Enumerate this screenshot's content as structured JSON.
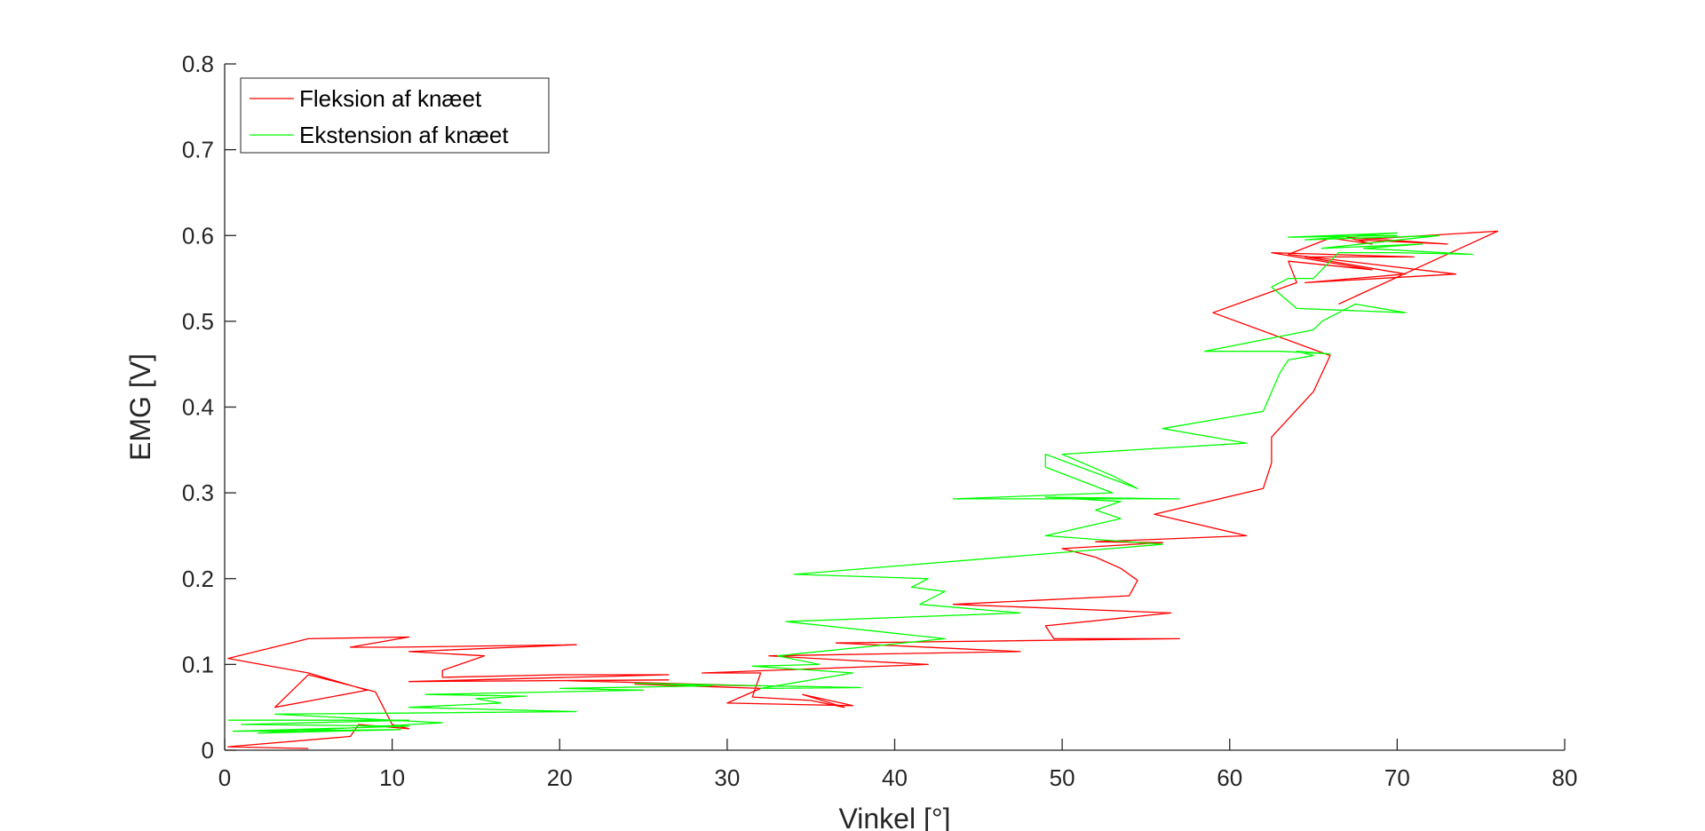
{
  "chart_data": {
    "type": "line",
    "xlabel": "Vinkel [°]",
    "ylabel": "EMG [V]",
    "xlim": [
      0,
      80
    ],
    "ylim": [
      0,
      0.8
    ],
    "xticks": [
      "0",
      "10",
      "20",
      "30",
      "40",
      "50",
      "60",
      "70",
      "80"
    ],
    "yticks": [
      "0",
      "0.1",
      "0.2",
      "0.3",
      "0.4",
      "0.5",
      "0.6",
      "0.7",
      "0.8"
    ],
    "grid": false,
    "legend_position": "top-left",
    "series": [
      {
        "name": "Fleksion af knæet",
        "color": "#ff0000",
        "x": [
          5.0,
          0.2,
          7.5,
          8.0,
          11.0,
          10.0,
          9.0,
          5.0,
          3.0,
          8.5,
          5.0,
          0.2,
          5.0,
          11.0,
          7.5,
          10.0,
          21.0,
          11.0,
          15.5,
          13.0,
          13.0,
          20.0,
          26.5,
          11.0,
          26.5,
          20.5,
          32.0,
          24.5,
          32.0,
          30.0,
          37.5,
          34.5,
          37.0,
          35.0,
          31.5,
          32.0,
          28.5,
          42.0,
          37.0,
          32.5,
          47.5,
          36.5,
          57.0,
          49.5,
          49.0,
          56.5,
          43.5,
          54.0,
          54.5,
          53.5,
          52.0,
          50.0,
          56.0,
          52.0,
          61.0,
          55.5,
          62.0,
          62.5,
          62.5,
          65.0,
          66.0,
          59.0,
          64.0,
          63.5,
          68.5,
          62.5,
          71.0,
          64.5,
          70.5,
          64.5,
          73.5,
          63.5,
          66.0,
          68.5,
          67.0,
          73.0,
          67.5,
          76.0,
          66.5
        ],
        "y": [
          0.002,
          0.004,
          0.016,
          0.03,
          0.025,
          0.03,
          0.068,
          0.088,
          0.05,
          0.07,
          0.09,
          0.107,
          0.13,
          0.132,
          0.12,
          0.12,
          0.123,
          0.115,
          0.11,
          0.093,
          0.085,
          0.088,
          0.088,
          0.08,
          0.082,
          0.081,
          0.075,
          0.077,
          0.072,
          0.055,
          0.052,
          0.065,
          0.05,
          0.058,
          0.062,
          0.09,
          0.09,
          0.1,
          0.105,
          0.11,
          0.115,
          0.125,
          0.13,
          0.13,
          0.145,
          0.16,
          0.17,
          0.18,
          0.198,
          0.212,
          0.225,
          0.235,
          0.242,
          0.243,
          0.25,
          0.275,
          0.305,
          0.335,
          0.365,
          0.418,
          0.46,
          0.51,
          0.545,
          0.57,
          0.56,
          0.58,
          0.575,
          0.575,
          0.555,
          0.545,
          0.555,
          0.578,
          0.597,
          0.59,
          0.598,
          0.59,
          0.595,
          0.605,
          0.52
        ]
      },
      {
        "name": "Ekstension af knæet",
        "color": "#00ff00",
        "x": [
          0.2,
          11.0,
          1.0,
          11.0,
          0.5,
          10.5,
          2.0,
          13.0,
          3.0,
          21.0,
          11.0,
          16.5,
          15.0,
          18.0,
          12.0,
          25.0,
          20.0,
          29.0,
          24.5,
          38.0,
          32.0,
          37.5,
          31.5,
          35.5,
          33.0,
          43.0,
          33.5,
          47.5,
          41.5,
          43.0,
          41.0,
          42.0,
          34.0,
          56.0,
          49.0,
          53.5,
          52.0,
          53.5,
          49.0,
          57.0,
          43.5,
          53.0,
          49.0,
          49.0,
          54.5,
          53.0,
          50.0,
          61.0,
          56.0,
          62.0,
          63.0,
          63.5,
          65.0,
          64.0,
          66.0,
          63.0,
          58.5,
          65.0,
          65.5,
          67.5,
          70.5,
          64.0,
          62.5,
          63.5,
          65.0,
          66.5,
          70.0,
          74.5,
          68.0,
          71.5,
          65.5,
          72.5,
          64.5,
          70.0,
          63.5,
          70.0
        ],
        "y": [
          0.035,
          0.035,
          0.03,
          0.028,
          0.022,
          0.024,
          0.02,
          0.032,
          0.042,
          0.045,
          0.05,
          0.055,
          0.06,
          0.063,
          0.065,
          0.07,
          0.072,
          0.075,
          0.078,
          0.073,
          0.072,
          0.09,
          0.098,
          0.1,
          0.11,
          0.13,
          0.15,
          0.16,
          0.17,
          0.185,
          0.19,
          0.2,
          0.205,
          0.24,
          0.25,
          0.27,
          0.28,
          0.29,
          0.295,
          0.293,
          0.293,
          0.3,
          0.33,
          0.345,
          0.305,
          0.32,
          0.345,
          0.358,
          0.375,
          0.395,
          0.44,
          0.455,
          0.46,
          0.465,
          0.462,
          0.465,
          0.465,
          0.49,
          0.5,
          0.52,
          0.51,
          0.515,
          0.54,
          0.55,
          0.55,
          0.58,
          0.58,
          0.578,
          0.585,
          0.59,
          0.585,
          0.6,
          0.595,
          0.603,
          0.598,
          0.6
        ]
      }
    ]
  }
}
